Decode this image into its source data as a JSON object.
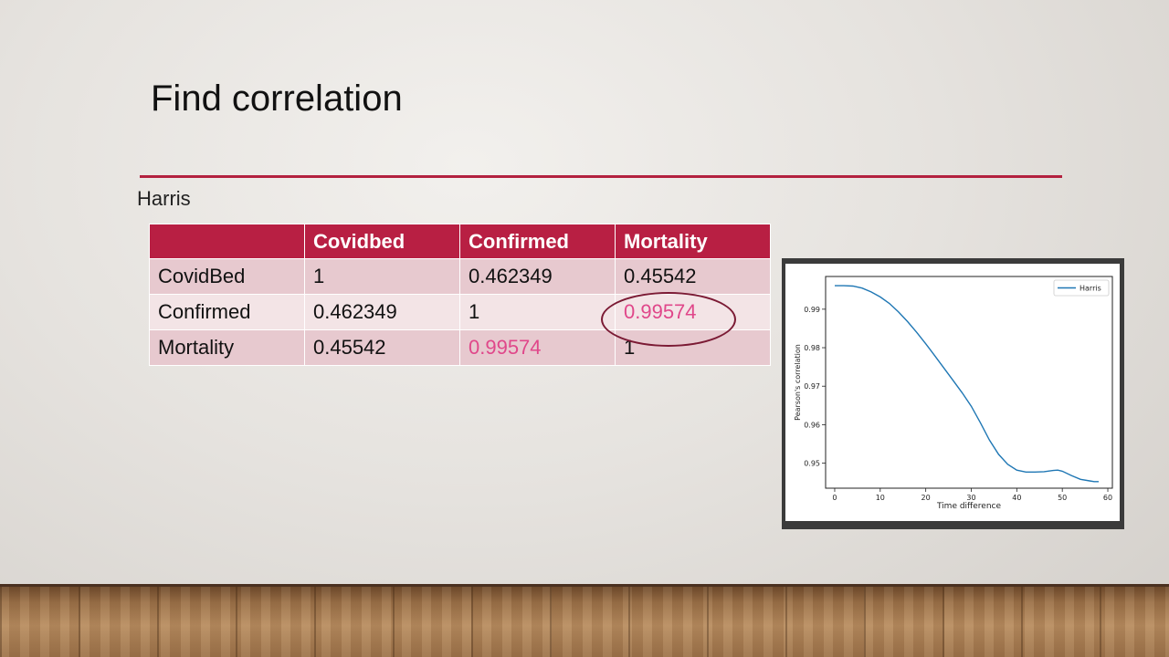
{
  "slide": {
    "title": "Find correlation",
    "subtitle": "Harris",
    "accent_color": "#b81f43"
  },
  "table": {
    "headers": [
      "",
      "Covidbed",
      "Confirmed",
      "Mortality"
    ],
    "rows": [
      [
        "CovidBed",
        "1",
        "0.462349",
        "0.45542"
      ],
      [
        "Confirmed",
        "0.462349",
        "1",
        "0.99574"
      ],
      [
        "Mortality",
        "0.45542",
        "0.99574",
        "1"
      ]
    ],
    "highlight_color": "#e0478a"
  },
  "chart_data": {
    "type": "line",
    "title": "",
    "xlabel": "Time difference",
    "ylabel": "Pearson's correlation",
    "xlim": [
      -2,
      61
    ],
    "ylim": [
      0.9435,
      0.9985
    ],
    "xticks": [
      0,
      10,
      20,
      30,
      40,
      50,
      60
    ],
    "yticks": [
      0.95,
      0.96,
      0.97,
      0.98,
      0.99
    ],
    "legend_position": "top-right",
    "grid": false,
    "series": [
      {
        "name": "Harris",
        "color": "#1f77b4",
        "x": [
          0,
          2,
          4,
          6,
          8,
          10,
          12,
          14,
          16,
          18,
          20,
          22,
          24,
          26,
          28,
          30,
          32,
          34,
          36,
          38,
          40,
          42,
          44,
          46,
          48,
          49,
          50,
          52,
          54,
          56,
          57,
          58
        ],
        "y": [
          0.9961,
          0.9961,
          0.996,
          0.9955,
          0.9945,
          0.9932,
          0.9915,
          0.9893,
          0.9868,
          0.984,
          0.981,
          0.9779,
          0.9747,
          0.9715,
          0.9683,
          0.9648,
          0.9605,
          0.956,
          0.9523,
          0.9497,
          0.9482,
          0.9477,
          0.9477,
          0.9478,
          0.9481,
          0.9482,
          0.9479,
          0.9468,
          0.9458,
          0.9454,
          0.9452,
          0.9452
        ]
      }
    ]
  }
}
